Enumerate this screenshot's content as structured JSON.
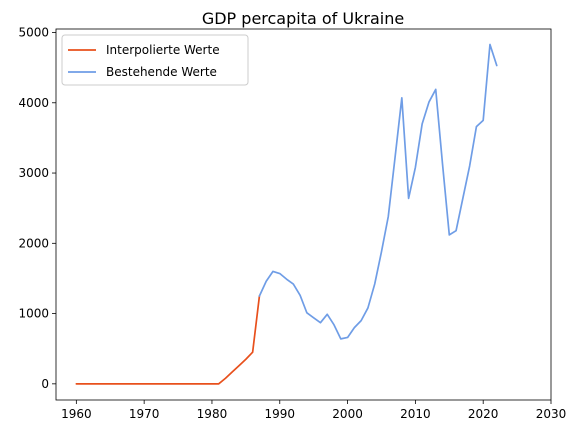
{
  "chart_data": {
    "type": "line",
    "title": "GDP percapita of Ukraine",
    "xlabel": "",
    "ylabel": "",
    "xlim": [
      1957,
      2030
    ],
    "ylim": [
      -230,
      5050
    ],
    "xticks": [
      1960,
      1970,
      1980,
      1990,
      2000,
      2010,
      2020,
      2030
    ],
    "yticks": [
      0,
      1000,
      2000,
      3000,
      4000,
      5000
    ],
    "tick_labels_x": [
      "1960",
      "1970",
      "1980",
      "1990",
      "2000",
      "2010",
      "2020",
      "2030"
    ],
    "tick_labels_y": [
      "0",
      "1000",
      "2000",
      "3000",
      "4000",
      "5000"
    ],
    "grid": false,
    "legend_position": "top-left",
    "series": [
      {
        "name": "Interpolierte Werte",
        "color": "#e8501c",
        "x": [
          1960,
          1961,
          1962,
          1963,
          1964,
          1965,
          1966,
          1967,
          1968,
          1969,
          1970,
          1971,
          1972,
          1973,
          1974,
          1975,
          1976,
          1977,
          1978,
          1979,
          1980,
          1981,
          1982,
          1983,
          1984,
          1985,
          1986,
          1987
        ],
        "values": [
          0,
          0,
          0,
          0,
          0,
          0,
          0,
          0,
          0,
          0,
          0,
          0,
          0,
          0,
          0,
          0,
          0,
          0,
          0,
          0,
          0,
          0,
          80,
          170,
          260,
          350,
          450,
          1250
        ]
      },
      {
        "name": "Bestehende Werte",
        "color": "#6f9de6",
        "x": [
          1987,
          1988,
          1989,
          1990,
          1991,
          1992,
          1993,
          1994,
          1995,
          1996,
          1997,
          1998,
          1999,
          2000,
          2001,
          2002,
          2003,
          2004,
          2005,
          2006,
          2007,
          2008,
          2009,
          2010,
          2011,
          2012,
          2013,
          2014,
          2015,
          2016,
          2017,
          2018,
          2019,
          2020,
          2021,
          2022
        ],
        "values": [
          1250,
          1460,
          1600,
          1570,
          1490,
          1420,
          1260,
          1010,
          940,
          870,
          990,
          840,
          640,
          660,
          800,
          900,
          1080,
          1420,
          1880,
          2380,
          3220,
          4070,
          2640,
          3080,
          3700,
          4010,
          4190,
          3130,
          2120,
          2180,
          2640,
          3100,
          3660,
          3750,
          4830,
          4530
        ]
      }
    ]
  }
}
